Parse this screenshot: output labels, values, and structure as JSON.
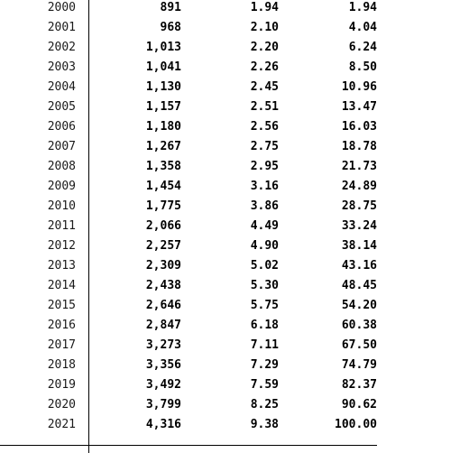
{
  "table": {
    "rows": [
      [
        "2000",
        "891",
        "1.94",
        "1.94"
      ],
      [
        "2001",
        "968",
        "2.10",
        "4.04"
      ],
      [
        "2002",
        "1,013",
        "2.20",
        "6.24"
      ],
      [
        "2003",
        "1,041",
        "2.26",
        "8.50"
      ],
      [
        "2004",
        "1,130",
        "2.45",
        "10.96"
      ],
      [
        "2005",
        "1,157",
        "2.51",
        "13.47"
      ],
      [
        "2006",
        "1,180",
        "2.56",
        "16.03"
      ],
      [
        "2007",
        "1,267",
        "2.75",
        "18.78"
      ],
      [
        "2008",
        "1,358",
        "2.95",
        "21.73"
      ],
      [
        "2009",
        "1,454",
        "3.16",
        "24.89"
      ],
      [
        "2010",
        "1,775",
        "3.86",
        "28.75"
      ],
      [
        "2011",
        "2,066",
        "4.49",
        "33.24"
      ],
      [
        "2012",
        "2,257",
        "4.90",
        "38.14"
      ],
      [
        "2013",
        "2,309",
        "5.02",
        "43.16"
      ],
      [
        "2014",
        "2,438",
        "5.30",
        "48.45"
      ],
      [
        "2015",
        "2,646",
        "5.75",
        "54.20"
      ],
      [
        "2016",
        "2,847",
        "6.18",
        "60.38"
      ],
      [
        "2017",
        "3,273",
        "7.11",
        "67.50"
      ],
      [
        "2018",
        "3,356",
        "7.29",
        "74.79"
      ],
      [
        "2019",
        "3,492",
        "7.59",
        "82.37"
      ],
      [
        "2020",
        "3,799",
        "8.25",
        "90.62"
      ],
      [
        "2021",
        "4,316",
        "9.38",
        "100.00"
      ]
    ]
  }
}
